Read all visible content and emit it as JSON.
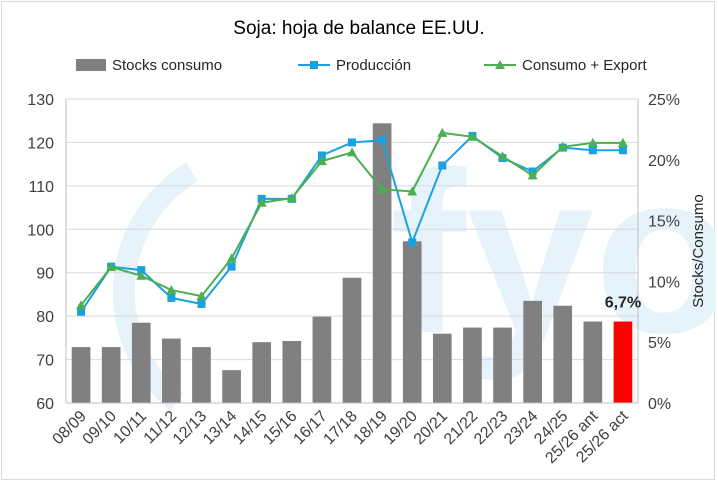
{
  "chart_data": {
    "type": "bar",
    "title": "Soja: hoja de balance EE.UU.",
    "categories": [
      "08/09",
      "09/10",
      "10/11",
      "11/12",
      "12/13",
      "13/14",
      "14/15",
      "15/16",
      "16/17",
      "17/18",
      "18/19",
      "19/20",
      "20/21",
      "21/22",
      "22/23",
      "23/24",
      "24/25",
      "25/26 ant",
      "25/26 act"
    ],
    "series": [
      {
        "name": "Stocks consumo",
        "kind": "bar",
        "axis": "right",
        "color": "#808080",
        "highlight_color": "#ff0000",
        "highlight_index": 18,
        "values": [
          4.6,
          4.6,
          6.6,
          5.3,
          4.6,
          2.7,
          5.0,
          5.1,
          7.1,
          10.3,
          23.0,
          13.3,
          5.7,
          6.2,
          6.2,
          8.4,
          8.0,
          6.7,
          6.7
        ]
      },
      {
        "name": "Producción",
        "kind": "line",
        "axis": "left",
        "color": "#1ba1e2",
        "marker": "square",
        "values": [
          81.0,
          91.4,
          90.6,
          84.2,
          82.8,
          91.4,
          107.0,
          107.0,
          117.0,
          120.0,
          120.5,
          97.0,
          114.7,
          121.5,
          116.4,
          113.3,
          118.8,
          118.2,
          118.2
        ]
      },
      {
        "name": "Consumo + Export",
        "kind": "line",
        "axis": "left",
        "color": "#4caf50",
        "marker": "triangle",
        "values": [
          82.5,
          91.3,
          89.3,
          86.0,
          84.6,
          93.3,
          106.1,
          107.2,
          115.7,
          117.7,
          109.2,
          108.7,
          122.2,
          121.3,
          116.8,
          112.4,
          119.0,
          119.9,
          119.9
        ]
      }
    ],
    "left_axis": {
      "ylim": [
        60,
        130
      ],
      "ticks": [
        "60",
        "70",
        "80",
        "90",
        "100",
        "110",
        "120",
        "130"
      ]
    },
    "right_axis": {
      "label": "Stocks/Consumo",
      "ylim": [
        0,
        25
      ],
      "ticks": [
        "0%",
        "5%",
        "10%",
        "15%",
        "20%",
        "25%"
      ]
    },
    "data_label": {
      "index": 18,
      "text": "6,7%"
    },
    "legend_position": "top",
    "grid": "horizontal",
    "watermark_text": "fyo"
  }
}
